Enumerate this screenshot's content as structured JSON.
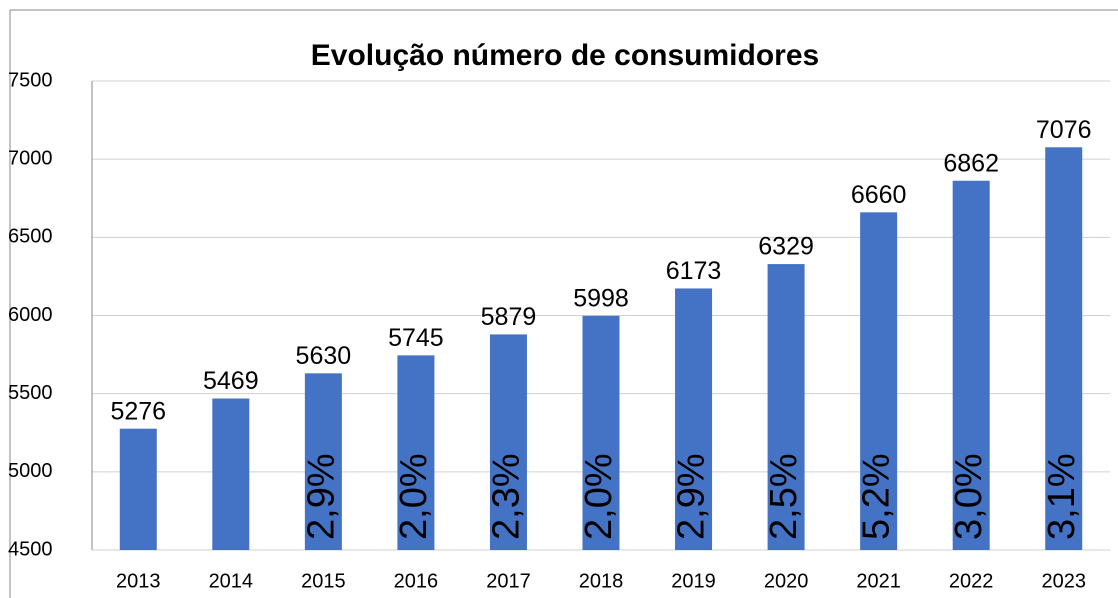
{
  "chart_data": {
    "type": "bar",
    "title": "Evolução número de consumidores",
    "categories": [
      "2013",
      "2014",
      "2015",
      "2016",
      "2017",
      "2018",
      "2019",
      "2020",
      "2021",
      "2022",
      "2023"
    ],
    "values": [
      5276,
      5469,
      5630,
      5745,
      5879,
      5998,
      6173,
      6329,
      6660,
      6862,
      7076
    ],
    "growth_labels": [
      null,
      null,
      "2,9%",
      "2,0%",
      "2,3%",
      "2,0%",
      "2,9%",
      "2,5%",
      "5,2%",
      "3,0%",
      "3,1%"
    ],
    "color": "#4472c4",
    "ylim": [
      4500,
      7500
    ],
    "yticks": [
      4500,
      5000,
      5500,
      6000,
      6500,
      7000,
      7500
    ],
    "grid": true
  }
}
